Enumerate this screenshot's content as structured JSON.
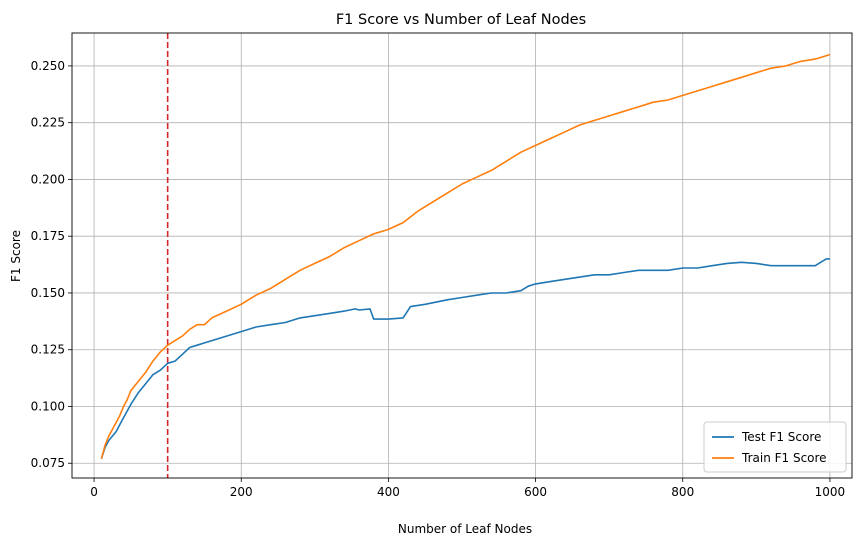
{
  "chart_data": {
    "type": "line",
    "title": "F1 Score vs Number of Leaf Nodes",
    "xlabel": "Number of Leaf Nodes",
    "ylabel": "F1 Score",
    "xlim": [
      -30,
      1030
    ],
    "ylim": [
      0.0685,
      0.2645
    ],
    "xticks": [
      0,
      200,
      400,
      600,
      800,
      1000
    ],
    "xtick_labels": [
      "0",
      "200",
      "400",
      "600",
      "800",
      "1000"
    ],
    "yticks": [
      0.075,
      0.1,
      0.125,
      0.15,
      0.175,
      0.2,
      0.225,
      0.25
    ],
    "ytick_labels": [
      "0.075",
      "0.100",
      "0.125",
      "0.150",
      "0.175",
      "0.200",
      "0.225",
      "0.250"
    ],
    "grid": true,
    "legend_position": "bottom-right",
    "vline": {
      "x": 100,
      "color": "#d62728",
      "style": "dashed"
    },
    "series": [
      {
        "name": "Test F1 Score",
        "color": "#1f77b4",
        "x": [
          10,
          15,
          20,
          25,
          30,
          35,
          40,
          45,
          50,
          60,
          70,
          80,
          90,
          100,
          110,
          120,
          130,
          140,
          150,
          160,
          180,
          200,
          220,
          240,
          260,
          280,
          300,
          320,
          340,
          355,
          360,
          375,
          380,
          400,
          420,
          430,
          450,
          480,
          500,
          520,
          540,
          560,
          580,
          590,
          600,
          620,
          640,
          660,
          680,
          700,
          720,
          740,
          760,
          780,
          800,
          820,
          840,
          860,
          880,
          900,
          920,
          940,
          960,
          980,
          995,
          1000
        ],
        "y": [
          0.077,
          0.082,
          0.085,
          0.087,
          0.089,
          0.092,
          0.095,
          0.098,
          0.101,
          0.106,
          0.11,
          0.114,
          0.116,
          0.119,
          0.12,
          0.123,
          0.126,
          0.127,
          0.128,
          0.129,
          0.131,
          0.133,
          0.135,
          0.136,
          0.137,
          0.139,
          0.14,
          0.141,
          0.142,
          0.143,
          0.1425,
          0.143,
          0.1385,
          0.1385,
          0.139,
          0.144,
          0.145,
          0.147,
          0.148,
          0.149,
          0.15,
          0.15,
          0.151,
          0.153,
          0.154,
          0.155,
          0.156,
          0.157,
          0.158,
          0.158,
          0.159,
          0.16,
          0.16,
          0.16,
          0.161,
          0.161,
          0.162,
          0.163,
          0.1635,
          0.163,
          0.162,
          0.162,
          0.162,
          0.162,
          0.165,
          0.165
        ]
      },
      {
        "name": "Train F1 Score",
        "color": "#ff7f0e",
        "x": [
          10,
          15,
          20,
          25,
          30,
          35,
          40,
          45,
          50,
          60,
          70,
          80,
          90,
          100,
          110,
          120,
          130,
          140,
          150,
          160,
          180,
          200,
          220,
          240,
          260,
          280,
          300,
          320,
          340,
          360,
          380,
          400,
          420,
          440,
          460,
          480,
          500,
          520,
          540,
          560,
          580,
          600,
          620,
          640,
          660,
          680,
          700,
          720,
          740,
          760,
          780,
          800,
          820,
          840,
          860,
          880,
          900,
          920,
          940,
          960,
          980,
          1000
        ],
        "y": [
          0.077,
          0.083,
          0.087,
          0.09,
          0.093,
          0.096,
          0.1,
          0.103,
          0.107,
          0.111,
          0.115,
          0.12,
          0.124,
          0.127,
          0.129,
          0.131,
          0.134,
          0.136,
          0.136,
          0.139,
          0.142,
          0.145,
          0.149,
          0.152,
          0.156,
          0.16,
          0.163,
          0.166,
          0.17,
          0.173,
          0.176,
          0.178,
          0.181,
          0.186,
          0.19,
          0.194,
          0.198,
          0.201,
          0.204,
          0.208,
          0.212,
          0.215,
          0.218,
          0.221,
          0.224,
          0.226,
          0.228,
          0.23,
          0.232,
          0.234,
          0.235,
          0.237,
          0.239,
          0.241,
          0.243,
          0.245,
          0.247,
          0.249,
          0.25,
          0.252,
          0.253,
          0.255
        ]
      }
    ]
  }
}
